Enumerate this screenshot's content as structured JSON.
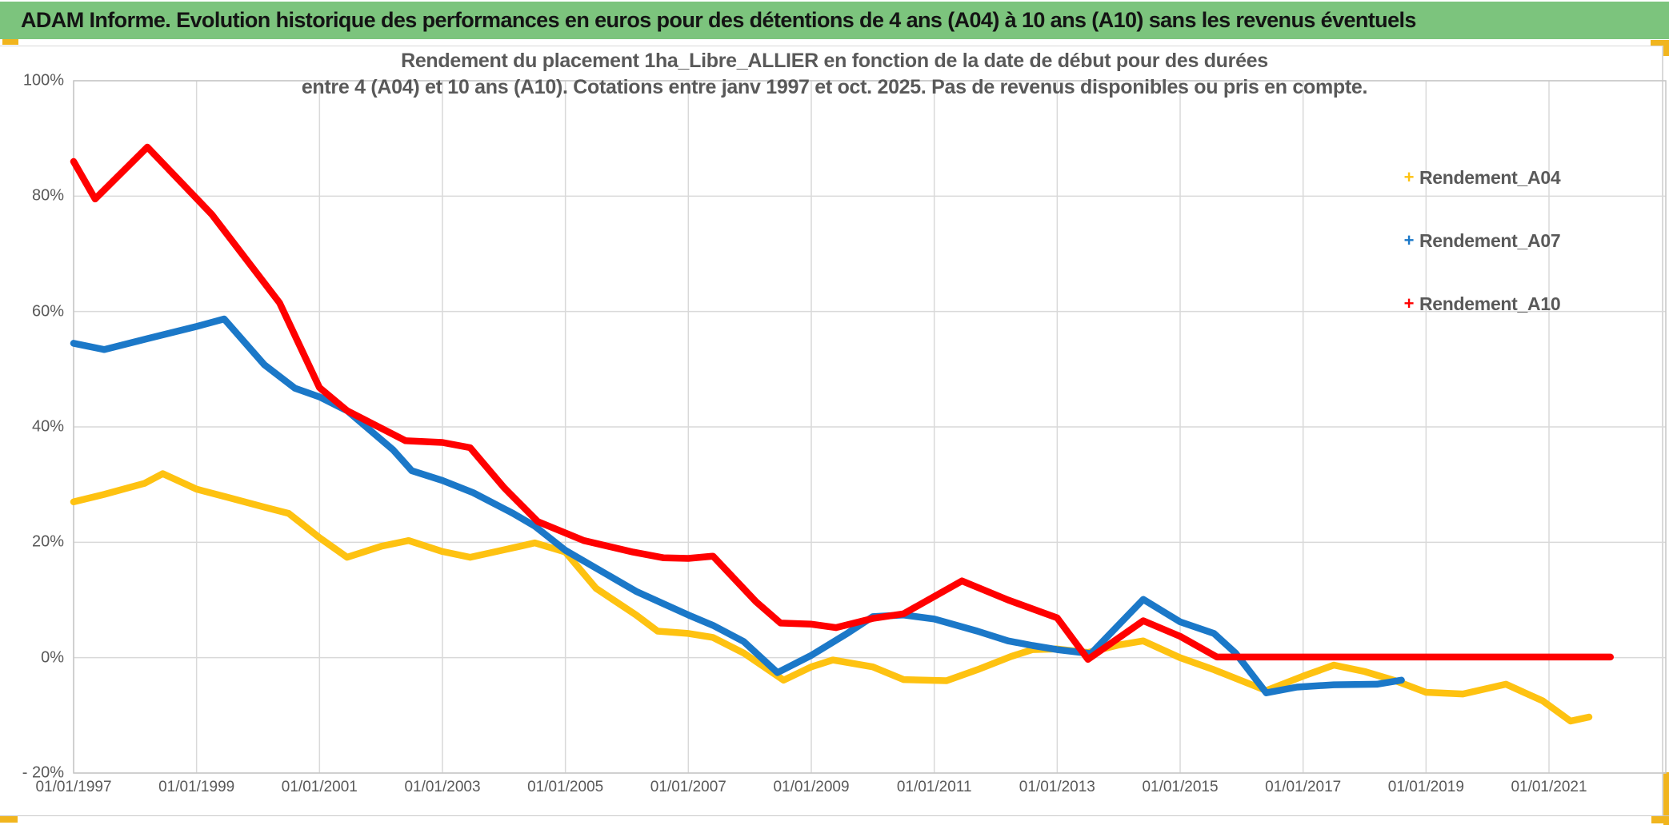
{
  "banner": {
    "text": "ADAM Informe. Evolution historique des performances en euros pour des détentions de 4 ans (A04) à 10 ans (A10) sans les revenus éventuels"
  },
  "colors": {
    "banner_green": "#7cc47d",
    "selection_yellow": "#f1b51e",
    "grid": "#d9d9d9",
    "text_gray": "#595959",
    "series_a04": "#fec211",
    "series_a07": "#1b78c8",
    "series_a10": "#ff0000"
  },
  "chart_data": {
    "type": "line",
    "title_line1": "Rendement du placement 1ha_Libre_ALLIER en fonction de la date de début pour des durées",
    "title_line2": "entre 4 (A04) et 10 ans (A10). Cotations entre janv 1997 et oct. 2025. Pas de revenus disponibles ou pris en compte.",
    "marker": "+",
    "grid": true,
    "legend_position": "right",
    "xlabel": "",
    "ylabel": "",
    "xlim": [
      1997,
      2022.9
    ],
    "ylim": [
      -20,
      100
    ],
    "x_tick_years": [
      1997,
      1999,
      2001,
      2003,
      2005,
      2007,
      2009,
      2011,
      2013,
      2015,
      2017,
      2019,
      2021
    ],
    "x_tick_labels": [
      "01/01/1997",
      "01/01/1999",
      "01/01/2001",
      "01/01/2003",
      "01/01/2005",
      "01/01/2007",
      "01/01/2009",
      "01/01/2011",
      "01/01/2013",
      "01/01/2015",
      "01/01/2017",
      "01/01/2019",
      "01/01/2021"
    ],
    "y_tick_values": [
      100,
      80,
      60,
      40,
      20,
      0,
      -20
    ],
    "y_tick_labels": [
      "100%",
      "80%",
      "60%",
      "40%",
      "20%",
      "0%",
      "- 20%"
    ],
    "series": [
      {
        "name": "Rendement_A04",
        "color": "#fec211",
        "points": [
          [
            1997.0,
            27.0
          ],
          [
            1997.5,
            28.3
          ],
          [
            1998.15,
            30.2
          ],
          [
            1998.45,
            31.9
          ],
          [
            1999.0,
            29.2
          ],
          [
            1999.5,
            27.8
          ],
          [
            2000.1,
            26.1
          ],
          [
            2000.5,
            25.0
          ],
          [
            2001.0,
            20.8
          ],
          [
            2001.45,
            17.4
          ],
          [
            2002.0,
            19.3
          ],
          [
            2002.45,
            20.3
          ],
          [
            2003.0,
            18.4
          ],
          [
            2003.45,
            17.4
          ],
          [
            2004.3,
            19.4
          ],
          [
            2004.5,
            19.9
          ],
          [
            2005.0,
            18.3
          ],
          [
            2005.5,
            12.0
          ],
          [
            2006.15,
            7.4
          ],
          [
            2006.5,
            4.6
          ],
          [
            2007.0,
            4.2
          ],
          [
            2007.4,
            3.5
          ],
          [
            2007.9,
            0.8
          ],
          [
            2008.55,
            -3.9
          ],
          [
            2009.0,
            -1.6
          ],
          [
            2009.35,
            -0.4
          ],
          [
            2010.0,
            -1.6
          ],
          [
            2010.5,
            -3.8
          ],
          [
            2011.2,
            -4.0
          ],
          [
            2011.7,
            -2.1
          ],
          [
            2012.25,
            0.2
          ],
          [
            2012.6,
            1.4
          ],
          [
            2013.0,
            1.5
          ],
          [
            2013.5,
            0.9
          ],
          [
            2014.0,
            2.2
          ],
          [
            2014.4,
            2.9
          ],
          [
            2015.0,
            0.0
          ],
          [
            2015.55,
            -2.1
          ],
          [
            2016.4,
            -5.7
          ],
          [
            2017.0,
            -3.2
          ],
          [
            2017.5,
            -1.3
          ],
          [
            2018.0,
            -2.4
          ],
          [
            2018.5,
            -4.0
          ],
          [
            2019.0,
            -6.0
          ],
          [
            2019.6,
            -6.3
          ],
          [
            2020.3,
            -4.6
          ],
          [
            2020.9,
            -7.5
          ],
          [
            2021.35,
            -11.0
          ],
          [
            2021.65,
            -10.3
          ]
        ]
      },
      {
        "name": "Rendement_A07",
        "color": "#1b78c8",
        "points": [
          [
            1997.0,
            54.5
          ],
          [
            1997.5,
            53.4
          ],
          [
            1998.2,
            55.3
          ],
          [
            1999.0,
            57.4
          ],
          [
            1999.45,
            58.7
          ],
          [
            2000.1,
            50.8
          ],
          [
            2000.6,
            46.7
          ],
          [
            2001.0,
            45.2
          ],
          [
            2001.45,
            42.8
          ],
          [
            2002.2,
            36.0
          ],
          [
            2002.5,
            32.4
          ],
          [
            2003.0,
            30.7
          ],
          [
            2003.5,
            28.6
          ],
          [
            2004.15,
            25.0
          ],
          [
            2004.5,
            22.8
          ],
          [
            2005.0,
            18.6
          ],
          [
            2006.15,
            11.5
          ],
          [
            2007.0,
            7.4
          ],
          [
            2007.4,
            5.6
          ],
          [
            2007.9,
            2.8
          ],
          [
            2008.45,
            -2.6
          ],
          [
            2009.0,
            0.4
          ],
          [
            2009.6,
            4.3
          ],
          [
            2010.0,
            7.1
          ],
          [
            2010.5,
            7.4
          ],
          [
            2011.0,
            6.7
          ],
          [
            2011.7,
            4.6
          ],
          [
            2012.2,
            2.9
          ],
          [
            2012.6,
            2.1
          ],
          [
            2013.0,
            1.4
          ],
          [
            2013.55,
            0.7
          ],
          [
            2014.4,
            10.1
          ],
          [
            2015.0,
            6.2
          ],
          [
            2015.55,
            4.2
          ],
          [
            2015.9,
            0.8
          ],
          [
            2016.4,
            -6.1
          ],
          [
            2016.9,
            -5.1
          ],
          [
            2017.5,
            -4.7
          ],
          [
            2018.2,
            -4.6
          ],
          [
            2018.6,
            -3.9
          ]
        ]
      },
      {
        "name": "Rendement_A10",
        "color": "#ff0000",
        "points": [
          [
            1997.0,
            86.0
          ],
          [
            1997.35,
            79.5
          ],
          [
            1998.2,
            88.5
          ],
          [
            1999.25,
            76.8
          ],
          [
            2000.35,
            61.5
          ],
          [
            2001.0,
            46.8
          ],
          [
            2001.45,
            42.8
          ],
          [
            2002.4,
            37.6
          ],
          [
            2003.0,
            37.3
          ],
          [
            2003.45,
            36.4
          ],
          [
            2004.0,
            29.5
          ],
          [
            2004.55,
            23.6
          ],
          [
            2005.3,
            20.3
          ],
          [
            2006.1,
            18.3
          ],
          [
            2006.6,
            17.3
          ],
          [
            2007.0,
            17.2
          ],
          [
            2007.4,
            17.6
          ],
          [
            2008.1,
            9.7
          ],
          [
            2008.5,
            6.0
          ],
          [
            2009.0,
            5.8
          ],
          [
            2009.4,
            5.2
          ],
          [
            2010.0,
            6.8
          ],
          [
            2010.5,
            7.6
          ],
          [
            2011.45,
            13.3
          ],
          [
            2012.2,
            10.0
          ],
          [
            2013.0,
            6.9
          ],
          [
            2013.5,
            -0.3
          ],
          [
            2014.4,
            6.4
          ],
          [
            2015.0,
            3.7
          ],
          [
            2015.6,
            0.1
          ],
          [
            2022.0,
            0.1
          ]
        ]
      }
    ]
  }
}
